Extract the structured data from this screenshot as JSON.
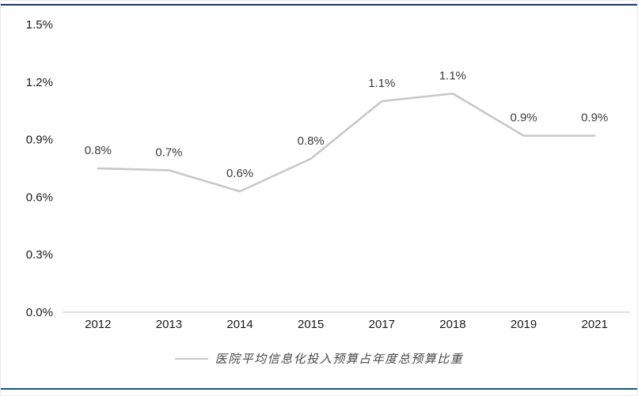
{
  "frame": {
    "background": "#FFFFFF",
    "top_rule_color": "#1F3864",
    "bottom_rule_color": "#175A78"
  },
  "chart_data": {
    "type": "line",
    "title": "",
    "xlabel": "",
    "ylabel": "",
    "categories": [
      "2012",
      "2013",
      "2014",
      "2015",
      "2017",
      "2018",
      "2019",
      "2021"
    ],
    "series": [
      {
        "name": "医院平均信息化投入预算占年度总预算比重",
        "values": [
          0.8,
          0.7,
          0.6,
          0.8,
          1.1,
          1.1,
          0.9,
          0.9
        ],
        "data_labels": [
          "0.8%",
          "0.7%",
          "0.6%",
          "0.8%",
          "1.1%",
          "1.1%",
          "0.9%",
          "0.9%"
        ],
        "plot_values": [
          0.75,
          0.74,
          0.63,
          0.8,
          1.1,
          1.14,
          0.92,
          0.92
        ],
        "color": "#C8C8C8"
      }
    ],
    "ylim": [
      0,
      1.5
    ],
    "ytick_step": 0.3,
    "yticks": [
      "0.0%",
      "0.3%",
      "0.6%",
      "0.9%",
      "1.2%",
      "1.5%"
    ],
    "grid": false,
    "legend_position": "bottom",
    "axis_line_color": "#D9D9D9",
    "tick_label_color": "#1A1A1A",
    "data_label_color": "#3B3B3B",
    "legend_text_color": "#4A4A4A"
  }
}
